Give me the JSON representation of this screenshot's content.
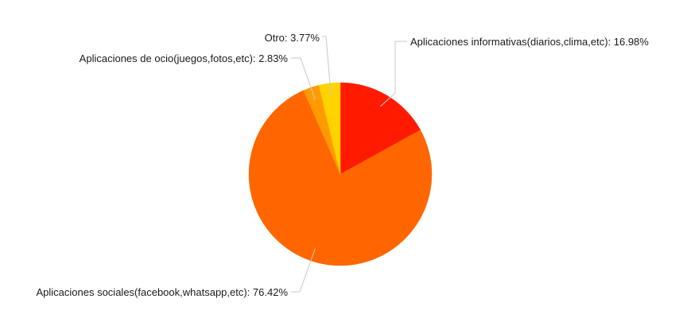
{
  "chart_data": {
    "type": "pie",
    "slices": [
      {
        "label": "Aplicaciones informativas(diarios,clima,etc)",
        "value": 16.98,
        "display": "16.98%",
        "color": "#ff1a00"
      },
      {
        "label": "Aplicaciones sociales(facebook,whatsapp,etc)",
        "value": 76.42,
        "display": "76.42%",
        "color": "#ff6600"
      },
      {
        "label": "Aplicaciones de ocio(juegos,fotos,etc)",
        "value": 2.83,
        "display": "2.83%",
        "color": "#ff9a00"
      },
      {
        "label": "Otro",
        "value": 3.77,
        "display": "3.77%",
        "color": "#ffd200"
      }
    ],
    "start_angle": "top",
    "direction": "clockwise",
    "legend": "none",
    "data_labels": "outside with leader lines"
  }
}
